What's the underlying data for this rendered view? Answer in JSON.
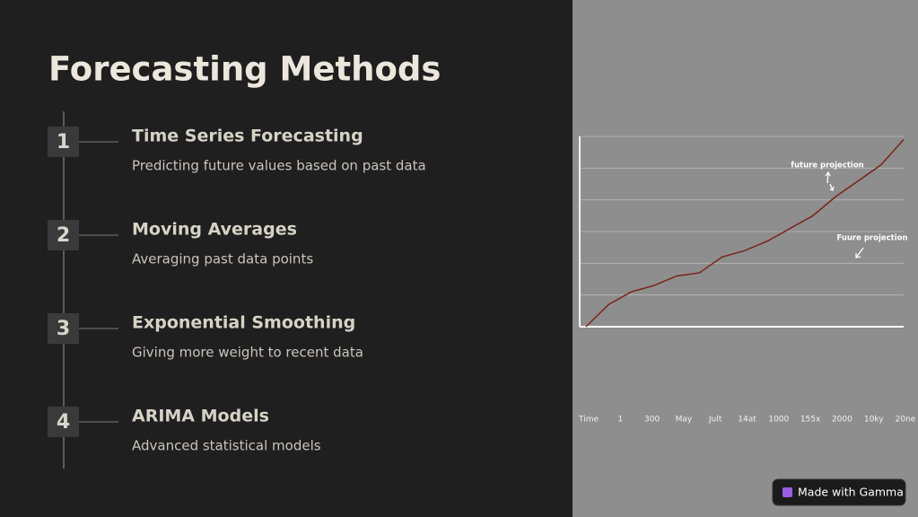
{
  "title": "Forecasting Methods",
  "steps": [
    {
      "number": "1",
      "heading": "Time Series Forecasting",
      "description": "Predicting future values based on past data"
    },
    {
      "number": "2",
      "heading": "Moving Averages",
      "description": "Averaging past data points"
    },
    {
      "number": "3",
      "heading": "Exponential Smoothing",
      "description": "Giving more weight to recent data"
    },
    {
      "number": "4",
      "heading": "ARIMA Models",
      "description": "Advanced statistical models"
    }
  ],
  "chart": {
    "type": "line",
    "values": [
      0,
      0.7,
      1.1,
      1.3,
      1.6,
      1.7,
      2.2,
      2.4,
      2.7,
      3.1,
      3.5,
      4.1,
      4.6,
      5.1,
      5.9
    ],
    "color": "#7a2418",
    "ylim": [
      0,
      6
    ],
    "yticks": [
      0,
      1,
      2,
      3,
      4,
      5,
      6
    ],
    "grid": true,
    "x_labels": [
      "Time",
      "1",
      "300",
      "May",
      "Jult",
      "14at",
      "1000",
      "155x",
      "2000",
      "10ky",
      "20ne"
    ],
    "annotations": [
      "future projection",
      "Fuure projection"
    ]
  },
  "badge": "Made with Gamma"
}
